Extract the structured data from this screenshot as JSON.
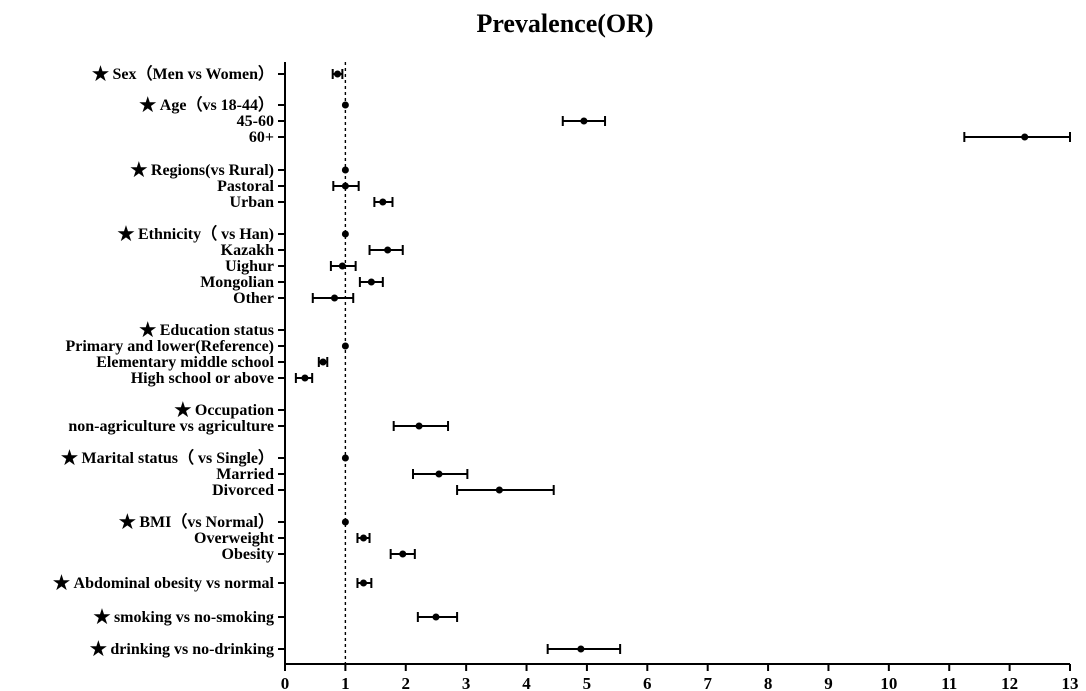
{
  "chart_data": {
    "type": "forest",
    "title": "Prevalence(OR)",
    "xlim": [
      0,
      13
    ],
    "x_ticks": [
      "0",
      "1",
      "2",
      "3",
      "4",
      "5",
      "6",
      "7",
      "8",
      "9",
      "10",
      "11",
      "12",
      "13"
    ],
    "reference_line": 1,
    "grid": false,
    "rows": [
      {
        "label": "Sex（Men vs Women）",
        "header": true,
        "or": 0.87,
        "lo": 0.79,
        "hi": 0.95
      },
      {
        "label": "Age（vs 18-44）",
        "header": true,
        "or": 1.0
      },
      {
        "label": "45-60",
        "header": false,
        "or": 4.95,
        "lo": 4.6,
        "hi": 5.3
      },
      {
        "label": "60+",
        "header": false,
        "or": 12.25,
        "lo": 11.25,
        "hi": 13.0
      },
      {
        "label": "Regions(vs Rural)",
        "header": true,
        "or": 1.0
      },
      {
        "label": "Pastoral",
        "header": false,
        "or": 1.0,
        "lo": 0.8,
        "hi": 1.22
      },
      {
        "label": "Urban",
        "header": false,
        "or": 1.62,
        "lo": 1.48,
        "hi": 1.78
      },
      {
        "label": "Ethnicity（ vs Han)",
        "header": true,
        "or": 1.0
      },
      {
        "label": "Kazakh",
        "header": false,
        "or": 1.7,
        "lo": 1.4,
        "hi": 1.95
      },
      {
        "label": "Uighur",
        "header": false,
        "or": 0.95,
        "lo": 0.76,
        "hi": 1.17
      },
      {
        "label": "Mongolian",
        "header": false,
        "or": 1.43,
        "lo": 1.24,
        "hi": 1.62
      },
      {
        "label": "Other",
        "header": false,
        "or": 0.82,
        "lo": 0.46,
        "hi": 1.13
      },
      {
        "label": "Education status",
        "header": true
      },
      {
        "label": "Primary and lower(Reference)",
        "header": false,
        "or": 1.0
      },
      {
        "label": "Elementary middle school",
        "header": false,
        "or": 0.63,
        "lo": 0.56,
        "hi": 0.7
      },
      {
        "label": "High school or above",
        "header": false,
        "or": 0.33,
        "lo": 0.18,
        "hi": 0.45
      },
      {
        "label": "Occupation",
        "header": true
      },
      {
        "label": "non-agriculture vs agriculture",
        "header": false,
        "or": 2.22,
        "lo": 1.8,
        "hi": 2.7
      },
      {
        "label": "Marital status（ vs Single）",
        "header": true,
        "or": 1.0
      },
      {
        "label": "Married",
        "header": false,
        "or": 2.55,
        "lo": 2.12,
        "hi": 3.02
      },
      {
        "label": "Divorced",
        "header": false,
        "or": 3.55,
        "lo": 2.85,
        "hi": 4.45
      },
      {
        "label": "BMI（vs Normal）",
        "header": true,
        "or": 1.0
      },
      {
        "label": "Overweight",
        "header": false,
        "or": 1.3,
        "lo": 1.2,
        "hi": 1.4
      },
      {
        "label": "Obesity",
        "header": false,
        "or": 1.95,
        "lo": 1.75,
        "hi": 2.15
      },
      {
        "label": "Abdominal obesity vs normal",
        "header": true,
        "or": 1.3,
        "lo": 1.2,
        "hi": 1.43
      },
      {
        "label": "smoking vs no-smoking",
        "header": true,
        "or": 2.5,
        "lo": 2.2,
        "hi": 2.85
      },
      {
        "label": "drinking vs no-drinking",
        "header": true,
        "or": 4.9,
        "lo": 4.35,
        "hi": 5.55
      }
    ]
  }
}
